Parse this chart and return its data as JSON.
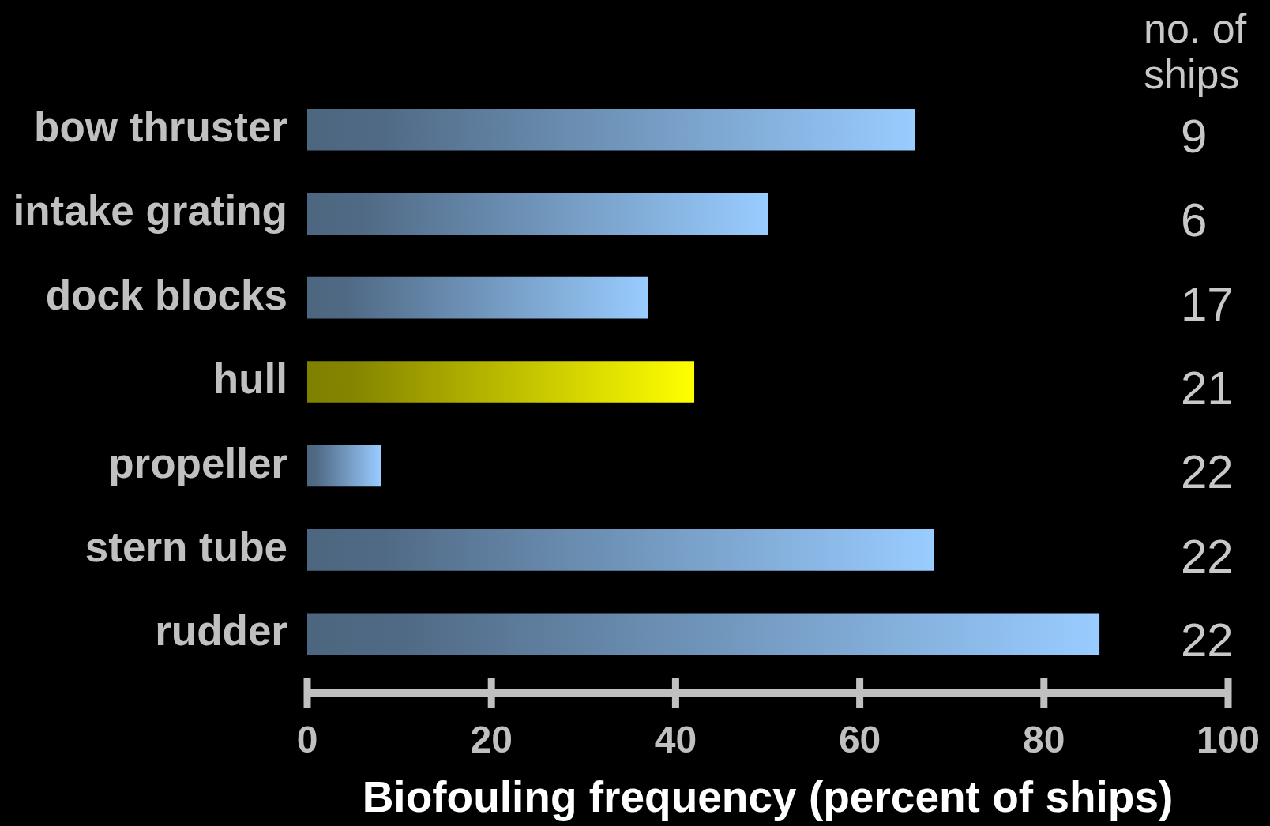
{
  "chart_data": {
    "type": "bar",
    "orientation": "horizontal",
    "categories": [
      "bow thruster",
      "intake grating",
      "dock blocks",
      "hull",
      "propeller",
      "stern tube",
      "rudder"
    ],
    "values": [
      66,
      50,
      37,
      42,
      8,
      68,
      86
    ],
    "colors": [
      "#99ccff",
      "#99ccff",
      "#99ccff",
      "#ffff00",
      "#99ccff",
      "#99ccff",
      "#99ccff"
    ],
    "xlabel": "Biofouling frequency (percent of ships)",
    "xlim": [
      0,
      100
    ],
    "xticks": [
      0,
      20,
      40,
      60,
      80,
      100
    ],
    "y2label": "no. of ships",
    "y2_categories": [
      "9",
      "6",
      "17",
      "21",
      "22",
      "22",
      "22"
    ]
  }
}
